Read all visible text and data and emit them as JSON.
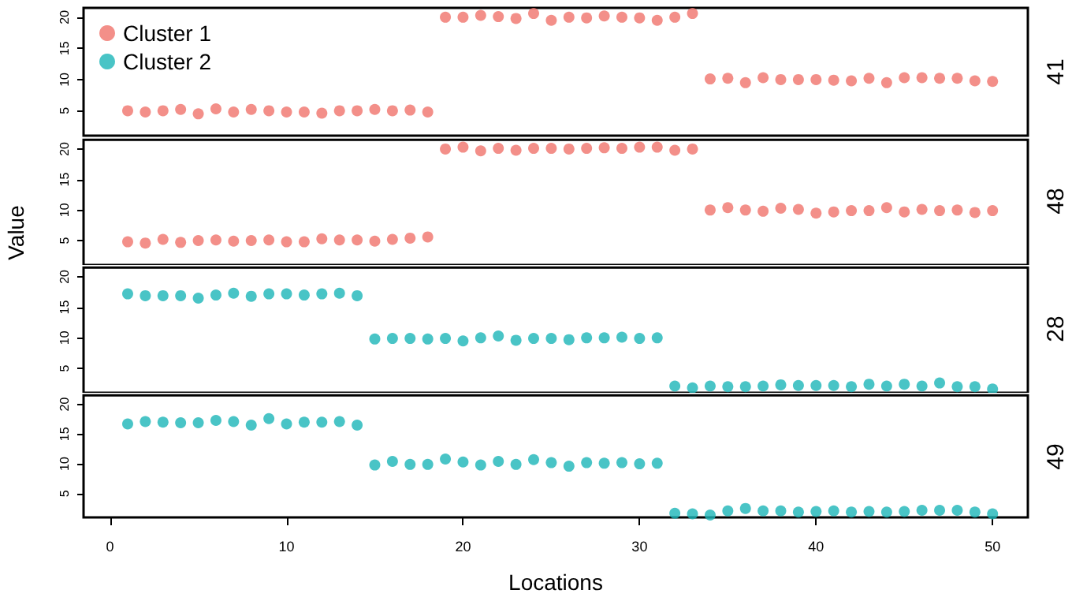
{
  "chart_data": [
    {
      "type": "scatter",
      "y2label": "41",
      "legend": "top left",
      "marker": "circle",
      "tick_labels": "y",
      "xlim": [
        -1.5,
        52
      ],
      "xticks": [
        0,
        10,
        20,
        30,
        40,
        50
      ],
      "ylim": [
        1,
        21.5
      ],
      "yticks": [
        5,
        10,
        15,
        20
      ],
      "x": [
        1,
        2,
        3,
        4,
        5,
        6,
        7,
        8,
        9,
        10,
        11,
        12,
        13,
        14,
        15,
        16,
        17,
        18,
        19,
        20,
        21,
        22,
        23,
        24,
        25,
        26,
        27,
        28,
        29,
        30,
        31,
        32,
        33,
        34,
        35,
        36,
        37,
        38,
        39,
        40,
        41,
        42,
        43,
        44,
        45,
        46,
        47,
        48,
        49,
        50
      ],
      "series": [
        {
          "name": "Cluster 1",
          "color": "#f0736b",
          "values": [
            5,
            4.8,
            5,
            5.2,
            4.5,
            5.3,
            4.8,
            5.2,
            5,
            4.8,
            4.8,
            4.6,
            5,
            5,
            5.2,
            5,
            5.1,
            4.8,
            20,
            20,
            20.3,
            20.1,
            19.8,
            20.6,
            19.5,
            20,
            19.9,
            20.2,
            20,
            19.9,
            19.5,
            20,
            20.6,
            10.1,
            10.2,
            9.5,
            10.3,
            10,
            10,
            10,
            9.9,
            9.8,
            10.2,
            9.5,
            10.3,
            10.3,
            10.2,
            10.2,
            9.8,
            9.7
          ]
        },
        {
          "name": "Cluster 2",
          "color": "#1bb5b8",
          "values": [
            null,
            null,
            null,
            null,
            null,
            null,
            null,
            null,
            null,
            null,
            null,
            null,
            null,
            null,
            null,
            null,
            null,
            null,
            null,
            null,
            null,
            null,
            null,
            null,
            null,
            null,
            null,
            null,
            null,
            null,
            null,
            null,
            null,
            null,
            null,
            null,
            null,
            null,
            null,
            null,
            null,
            null,
            null,
            null,
            null,
            null,
            null,
            null,
            null,
            null
          ]
        }
      ]
    },
    {
      "type": "scatter",
      "y2label": "48",
      "ylabel": "Value",
      "marker": "circle",
      "tick_labels": "y",
      "xlim": [
        -1.5,
        52
      ],
      "xticks": [
        0,
        10,
        20,
        30,
        40,
        50
      ],
      "ylim": [
        1,
        21.5
      ],
      "yticks": [
        5,
        10,
        15,
        20
      ],
      "x": [
        1,
        2,
        3,
        4,
        5,
        6,
        7,
        8,
        9,
        10,
        11,
        12,
        13,
        14,
        15,
        16,
        17,
        18,
        19,
        20,
        21,
        22,
        23,
        24,
        25,
        26,
        27,
        28,
        29,
        30,
        31,
        32,
        33,
        34,
        35,
        36,
        37,
        38,
        39,
        40,
        41,
        42,
        43,
        44,
        45,
        46,
        47,
        48,
        49,
        50
      ],
      "series": [
        {
          "color": "#f0736b",
          "values": [
            4.8,
            4.6,
            5.2,
            4.7,
            5,
            5.1,
            4.9,
            5,
            5.1,
            4.8,
            4.8,
            5.3,
            5.1,
            5.1,
            4.9,
            5.2,
            5.4,
            5.6,
            20,
            20.3,
            19.7,
            20.1,
            19.8,
            20.1,
            20.1,
            20,
            20.1,
            20.2,
            20.1,
            20.3,
            20.3,
            19.8,
            20,
            10,
            10.4,
            10,
            9.8,
            10.3,
            10.1,
            9.5,
            9.7,
            9.9,
            9.9,
            10.4,
            9.7,
            10.1,
            9.9,
            10,
            9.6,
            9.9
          ]
        }
      ]
    },
    {
      "type": "scatter",
      "y2label": "28",
      "marker": "circle",
      "tick_labels": "y",
      "xlim": [
        -1.5,
        52
      ],
      "xticks": [
        0,
        10,
        20,
        30,
        40,
        50
      ],
      "ylim": [
        1,
        21.5
      ],
      "yticks": [
        5,
        10,
        15,
        20
      ],
      "x": [
        1,
        2,
        3,
        4,
        5,
        6,
        7,
        8,
        9,
        10,
        11,
        12,
        13,
        14,
        15,
        16,
        17,
        18,
        19,
        20,
        21,
        22,
        23,
        24,
        25,
        26,
        27,
        28,
        29,
        30,
        31,
        32,
        33,
        34,
        35,
        36,
        37,
        38,
        39,
        40,
        41,
        42,
        43,
        44,
        45,
        46,
        47,
        48,
        49,
        50
      ],
      "series": [
        {
          "color": "#1bb5b8",
          "values": [
            17.2,
            16.9,
            16.9,
            16.9,
            16.5,
            17,
            17.3,
            16.8,
            17.2,
            17.2,
            17,
            17.2,
            17.3,
            16.9,
            9.8,
            9.9,
            9.9,
            9.8,
            9.9,
            9.5,
            10,
            10.3,
            9.6,
            9.9,
            9.9,
            9.7,
            10,
            10,
            10.1,
            9.9,
            10,
            2.1,
            1.8,
            2.1,
            2,
            2,
            2.1,
            2.3,
            2.2,
            2.2,
            2.2,
            2,
            2.4,
            2.1,
            2.4,
            2.1,
            2.6,
            2,
            2,
            1.6
          ]
        }
      ]
    },
    {
      "type": "scatter",
      "y2label": "49",
      "xlabel": "Locations",
      "marker": "circle",
      "xlim": [
        -1.5,
        52
      ],
      "xticks": [
        0,
        10,
        20,
        30,
        40,
        50
      ],
      "ylim": [
        1,
        21.5
      ],
      "yticks": [
        5,
        10,
        15,
        20
      ],
      "x": [
        1,
        2,
        3,
        4,
        5,
        6,
        7,
        8,
        9,
        10,
        11,
        12,
        13,
        14,
        15,
        16,
        17,
        18,
        19,
        20,
        21,
        22,
        23,
        24,
        25,
        26,
        27,
        28,
        29,
        30,
        31,
        32,
        33,
        34,
        35,
        36,
        37,
        38,
        39,
        40,
        41,
        42,
        43,
        44,
        45,
        46,
        47,
        48,
        49,
        50
      ],
      "series": [
        {
          "color": "#1bb5b8",
          "values": [
            16.7,
            17.1,
            17,
            16.9,
            16.9,
            17.3,
            17.1,
            16.5,
            17.6,
            16.7,
            17,
            17,
            17.1,
            16.5,
            9.8,
            10.4,
            9.9,
            9.9,
            10.8,
            10.3,
            9.8,
            10.4,
            9.9,
            10.7,
            10.2,
            9.6,
            10.2,
            10.1,
            10.2,
            10,
            10.1,
            1.7,
            1.6,
            1.4,
            2.1,
            2.5,
            2.1,
            2.1,
            1.9,
            2,
            2.1,
            1.9,
            2,
            1.9,
            2,
            2.2,
            2.2,
            2.2,
            1.9,
            1.6
          ]
        }
      ]
    }
  ]
}
